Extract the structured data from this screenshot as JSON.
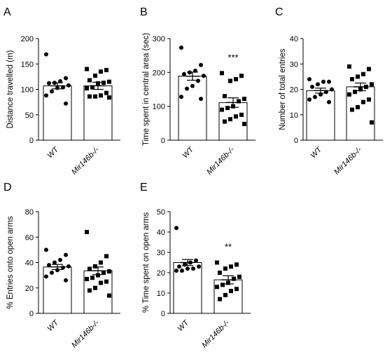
{
  "chart_data": [
    {
      "panel": "A",
      "type": "bar",
      "ylabel": "Distance travelled (m)",
      "ylim": [
        0,
        200
      ],
      "yticks": [
        0,
        50,
        100,
        150,
        200
      ],
      "categories": [
        "WT",
        "Mir146b-/-"
      ],
      "bar_means": [
        107,
        107
      ],
      "sem": [
        6,
        7
      ],
      "points": [
        [
          169,
          122,
          116,
          113,
          112,
          108,
          104,
          103,
          96,
          88,
          72
        ],
        [
          140,
          138,
          135,
          127,
          118,
          115,
          113,
          112,
          104,
          102,
          93,
          88,
          86,
          86,
          84
        ]
      ],
      "significance": ""
    },
    {
      "panel": "B",
      "type": "bar",
      "ylabel": "Time spent in central area (sec)",
      "ylim": [
        0,
        300
      ],
      "yticks": [
        0,
        100,
        200,
        300
      ],
      "categories": [
        "WT",
        "Mir146b-/-"
      ],
      "bar_means": [
        189,
        111
      ],
      "sem": [
        12,
        14
      ],
      "points": [
        [
          273,
          222,
          205,
          200,
          195,
          190,
          175,
          160,
          152,
          128,
          122
        ],
        [
          198,
          190,
          180,
          175,
          130,
          122,
          115,
          100,
          95,
          90,
          75,
          70,
          62,
          55,
          48
        ]
      ],
      "significance": "***"
    },
    {
      "panel": "C",
      "type": "bar",
      "ylabel": "Number of total entries",
      "ylim": [
        0,
        40
      ],
      "yticks": [
        0,
        10,
        20,
        30,
        40
      ],
      "categories": [
        "WT",
        "Mir146b-/-"
      ],
      "bar_means": [
        19.5,
        21
      ],
      "sem": [
        1,
        1.5
      ],
      "points": [
        [
          24,
          23,
          23,
          22,
          21,
          20,
          19,
          18,
          17,
          16,
          15
        ],
        [
          29,
          28,
          26,
          25,
          24,
          22,
          21,
          20,
          19,
          18,
          16,
          15,
          13,
          12,
          7
        ]
      ],
      "significance": ""
    },
    {
      "panel": "D",
      "type": "bar",
      "ylabel": "% Entries onto open arms",
      "ylim": [
        0,
        80
      ],
      "yticks": [
        0,
        20,
        40,
        60,
        80
      ],
      "categories": [
        "WT",
        "Mir146b-/-"
      ],
      "bar_means": [
        36.5,
        33.5
      ],
      "sem": [
        2,
        3
      ],
      "points": [
        [
          50,
          46,
          42,
          40,
          38,
          37,
          36,
          34,
          32,
          29,
          26
        ],
        [
          64,
          45,
          40,
          37,
          35,
          33,
          32,
          30,
          28,
          27,
          25,
          24,
          20,
          18,
          14
        ]
      ],
      "significance": ""
    },
    {
      "panel": "E",
      "type": "bar",
      "ylabel": "% Time spent on open arms",
      "ylim": [
        0,
        50
      ],
      "yticks": [
        0,
        10,
        20,
        30,
        40,
        50
      ],
      "categories": [
        "WT",
        "Mir146b-/-"
      ],
      "bar_means": [
        25,
        16.5
      ],
      "sem": [
        1.5,
        2
      ],
      "points": [
        [
          42,
          26,
          25,
          24,
          23,
          23,
          22,
          22,
          21,
          21
        ],
        [
          25,
          24,
          23,
          22,
          20,
          18,
          17,
          15,
          14,
          13,
          12,
          11,
          9,
          7
        ]
      ],
      "significance": "**"
    }
  ]
}
